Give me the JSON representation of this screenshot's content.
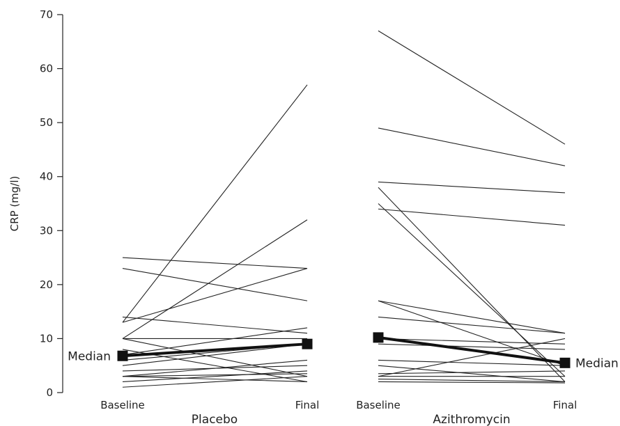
{
  "chart_data": {
    "type": "line",
    "ylabel": "CRP (mg/l)",
    "ylim": [
      0,
      70
    ],
    "yticks": [
      "0",
      "10",
      "20",
      "30",
      "40",
      "50",
      "60",
      "70"
    ],
    "x_tick_labels": [
      "Baseline",
      "Final",
      "Baseline",
      "Final"
    ],
    "groups": [
      {
        "name": "Placebo",
        "pairs": [
          [
            25,
            23
          ],
          [
            23,
            17
          ],
          [
            14,
            11
          ],
          [
            13,
            57
          ],
          [
            13,
            23
          ],
          [
            10,
            32
          ],
          [
            10,
            10
          ],
          [
            10,
            3
          ],
          [
            8,
            2
          ],
          [
            7,
            12
          ],
          [
            6,
            9
          ],
          [
            5,
            9
          ],
          [
            4,
            5
          ],
          [
            3,
            6
          ],
          [
            3,
            3.5
          ],
          [
            3,
            2
          ],
          [
            2,
            4
          ],
          [
            1,
            3
          ]
        ],
        "median": [
          6.8,
          9
        ],
        "median_label": "Median"
      },
      {
        "name": "Azithromycin",
        "pairs": [
          [
            67,
            46
          ],
          [
            49,
            42
          ],
          [
            39,
            37
          ],
          [
            38,
            2
          ],
          [
            35,
            3
          ],
          [
            34,
            31
          ],
          [
            17,
            11
          ],
          [
            17,
            5
          ],
          [
            14,
            11
          ],
          [
            10,
            9
          ],
          [
            9,
            8
          ],
          [
            6,
            5
          ],
          [
            5,
            2
          ],
          [
            3.5,
            4
          ],
          [
            3,
            10
          ],
          [
            3,
            3
          ],
          [
            2.5,
            2
          ],
          [
            2,
            1.8
          ]
        ],
        "median": [
          10.2,
          5.5
        ],
        "median_label": "Median"
      }
    ]
  }
}
